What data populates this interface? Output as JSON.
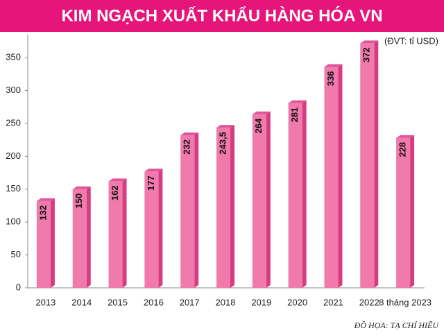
{
  "chart_data": {
    "type": "bar",
    "title": "KIM NGẠCH XUẤT KHẨU HÀNG HÓA VN",
    "unit": "(ĐVT: tỉ USD)",
    "credit": "ĐỒ HỌA: TẠ CHÍ HIẾU",
    "categories": [
      "2013",
      "2014",
      "2015",
      "2016",
      "2017",
      "2018",
      "2019",
      "2020",
      "2021",
      "2022",
      "8 tháng 2023"
    ],
    "values": [
      132,
      150,
      162,
      177,
      232,
      243.5,
      264,
      281,
      336,
      372,
      228
    ],
    "value_labels": [
      "132",
      "150",
      "162",
      "177",
      "232",
      "243,5",
      "264",
      "281",
      "336",
      "372",
      "228"
    ],
    "color": "#f07aac",
    "ylim": [
      0,
      385
    ],
    "yticks": [
      0,
      50,
      100,
      150,
      200,
      250,
      300,
      350
    ],
    "grid": false
  }
}
